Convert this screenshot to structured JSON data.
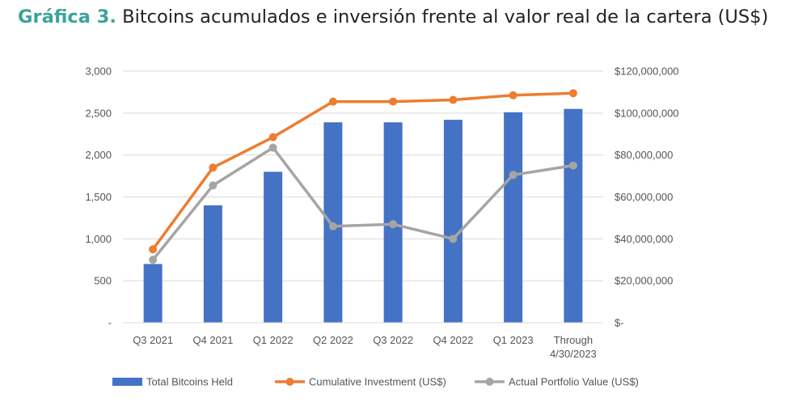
{
  "figure": {
    "title_prefix": "Gráfica 3.",
    "title_text": "Bitcoins acumulados e inversión frente al valor real de la cartera (US$)"
  },
  "chart_data": {
    "type": "bar+line",
    "categories": [
      "Q3 2021",
      "Q4 2021",
      "Q1 2022",
      "Q2 2022",
      "Q3 2022",
      "Q4 2022",
      "Q1 2023",
      "Through 4/30/2023"
    ],
    "series": [
      {
        "name": "Total Bitcoins Held",
        "type": "bar",
        "axis": "left",
        "color": "#4472c4",
        "values": [
          700,
          1400,
          1800,
          2390,
          2390,
          2420,
          2510,
          2550
        ]
      },
      {
        "name": "Cumulative Investment (US$)",
        "type": "line",
        "axis": "right",
        "color": "#ed7d31",
        "values": [
          35000000,
          74000000,
          88500000,
          105500000,
          105500000,
          106300000,
          108500000,
          109500000
        ]
      },
      {
        "name": "Actual Portfolio Value (US$)",
        "type": "line",
        "axis": "right",
        "color": "#a5a5a5",
        "values": [
          30000000,
          65500000,
          83500000,
          46000000,
          47000000,
          40000000,
          70500000,
          75000000
        ]
      }
    ],
    "y_left": {
      "min": 0,
      "max": 3000,
      "ticks": [
        0,
        500,
        1000,
        1500,
        2000,
        2500,
        3000
      ],
      "tick_labels": [
        "-",
        "500",
        "1,000",
        "1,500",
        "2,000",
        "2,500",
        "3,000"
      ]
    },
    "y_right": {
      "min": 0,
      "max": 120000000,
      "ticks": [
        0,
        20000000,
        40000000,
        60000000,
        80000000,
        100000000,
        120000000
      ],
      "tick_labels": [
        "$-",
        "$20,000,000",
        "$40,000,000",
        "$60,000,000",
        "$80,000,000",
        "$100,000,000",
        "$120,000,000"
      ]
    },
    "grid": true,
    "legend": "bottom"
  }
}
